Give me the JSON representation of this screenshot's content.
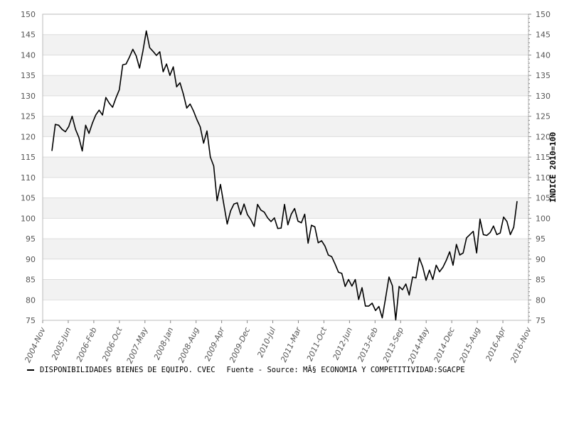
{
  "chart_data": {
    "type": "line",
    "title": "",
    "xlabel": "",
    "ylabel": "INDICE 2010=100",
    "ylim": [
      75,
      150
    ],
    "y_ticks": [
      75,
      80,
      85,
      90,
      95,
      100,
      105,
      110,
      115,
      120,
      125,
      130,
      135,
      140,
      145,
      150
    ],
    "x_tick_labels": [
      "2004-Nov",
      "2005-Jun",
      "2006-Feb",
      "2006-Oct",
      "2007-May",
      "2008-Jan",
      "2008-Aug",
      "2009-Apr",
      "2009-Dec",
      "2010-Jul",
      "2011-Mar",
      "2011-Oct",
      "2012-Jun",
      "2013-Feb",
      "2013-Sep",
      "2014-May",
      "2014-Dec",
      "2015-Aug",
      "2016-Apr",
      "2016-Nov"
    ],
    "grid": "horizontal alternating bands",
    "legend_position": "bottom-left",
    "line_color": "#000000",
    "series": [
      {
        "name": "DISPONIBILIDADES BIENES DE EQUIPO. CVEC",
        "x_start": "2005-01",
        "frequency": "monthly",
        "values": [
          116.5,
          123.0,
          122.8,
          121.8,
          121.2,
          122.5,
          125.0,
          121.8,
          119.8,
          116.5,
          122.8,
          120.8,
          123.3,
          125.3,
          126.5,
          125.3,
          129.6,
          128.2,
          127.2,
          129.5,
          131.5,
          137.6,
          137.8,
          139.5,
          141.4,
          139.8,
          136.8,
          141.0,
          145.9,
          141.8,
          140.9,
          139.9,
          140.8,
          135.9,
          137.8,
          135.0,
          137.1,
          132.2,
          133.2,
          130.4,
          127.0,
          128.0,
          126.3,
          124.2,
          122.4,
          118.4,
          121.4,
          115.0,
          112.8,
          104.3,
          108.3,
          103.4,
          98.6,
          101.8,
          103.5,
          103.8,
          100.9,
          103.5,
          100.9,
          99.7,
          98.0,
          103.4,
          102.0,
          101.5,
          100.1,
          99.2,
          100.1,
          97.5,
          97.6,
          103.4,
          98.4,
          101.0,
          102.4,
          99.3,
          98.9,
          101.0,
          93.9,
          98.3,
          97.9,
          94.0,
          94.5,
          93.2,
          91.0,
          90.6,
          88.8,
          86.8,
          86.5,
          83.3,
          85.0,
          83.4,
          85.0,
          80.1,
          83.0,
          78.5,
          78.5,
          79.2,
          77.4,
          78.4,
          75.6,
          80.5,
          85.6,
          83.5,
          75.1,
          83.3,
          82.5,
          83.9,
          81.2,
          85.6,
          85.4,
          90.3,
          88.1,
          84.8,
          87.3,
          85.0,
          88.5,
          86.9,
          88.0,
          89.7,
          91.8,
          88.5,
          93.6,
          91.0,
          91.5,
          95.2,
          96.0,
          96.8,
          91.5,
          99.8,
          96.0,
          95.8,
          96.5,
          98.1,
          96.0,
          96.4,
          100.3,
          99.2,
          96.0,
          97.8,
          104.2
        ]
      }
    ]
  },
  "legend": {
    "series_label": "DISPONIBILIDADES BIENES DE EQUIPO. CVEC",
    "source_text": "Fuente - Source: MÂ§ ECONOMIA Y COMPETITIVIDAD:SGACPE"
  }
}
